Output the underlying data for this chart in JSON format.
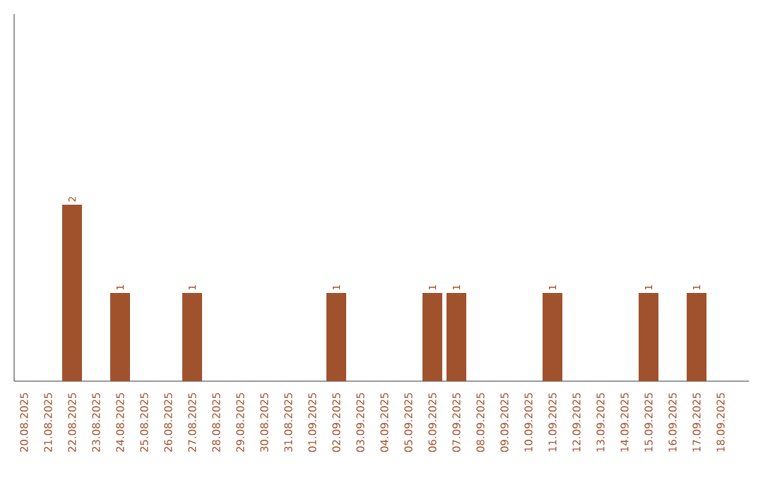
{
  "chart_data": {
    "type": "bar",
    "categories": [
      "20.08.2025",
      "21.08.2025",
      "22.08.2025",
      "23.08.2025",
      "24.08.2025",
      "25.08.2025",
      "26.08.2025",
      "27.08.2025",
      "28.08.2025",
      "29.08.2025",
      "30.08.2025",
      "31.08.2025",
      "01.09.2025",
      "02.09.2025",
      "03.09.2025",
      "04.09.2025",
      "05.09.2025",
      "06.09.2025",
      "07.09.2025",
      "08.09.2025",
      "09.09.2025",
      "10.09.2025",
      "11.09.2025",
      "12.09.2025",
      "13.09.2025",
      "14.09.2025",
      "15.09.2025",
      "16.09.2025",
      "17.09.2025",
      "18.09.2025"
    ],
    "values": [
      0,
      0,
      2,
      0,
      1,
      0,
      0,
      1,
      0,
      0,
      0,
      0,
      0,
      1,
      0,
      0,
      0,
      1,
      1,
      0,
      0,
      0,
      1,
      0,
      0,
      0,
      1,
      0,
      1,
      0
    ],
    "value_labels": [
      null,
      null,
      "2",
      null,
      "1",
      null,
      null,
      "1",
      null,
      null,
      null,
      null,
      null,
      "1",
      null,
      null,
      null,
      "1",
      "1",
      null,
      null,
      null,
      "1",
      null,
      null,
      null,
      "1",
      null,
      "1",
      null
    ],
    "color": "#a0522d"
  }
}
